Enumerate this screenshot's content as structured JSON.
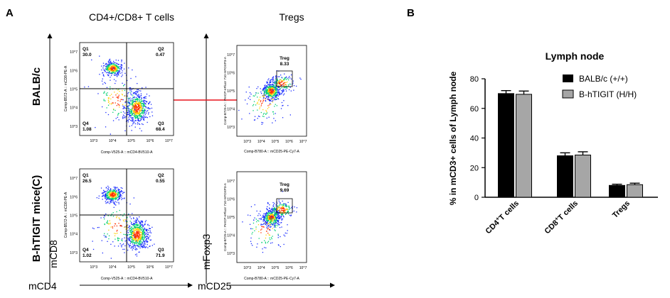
{
  "panel_a": {
    "label": "A",
    "col_titles": [
      "CD4+/CD8+ T cells",
      "Tregs"
    ],
    "row_labels": [
      "BALB/c",
      "B-hTIGIT mice(C)"
    ],
    "axis_mcd8": "mCD8",
    "axis_mcd4": "mCD4",
    "axis_mfoxp3": "mFoxp3",
    "axis_mcd25": "mCD25",
    "plot_xlabel_cd4": "Comp-V525-A :: mCD4-BV510-A",
    "plot_ylabel_cd8": "Comp-B572-A :: mCD8-PE-A",
    "plot_xlabel_cd25": "Comp-B780-A :: mCD25-PE-Cy7-A",
    "plot_ylabel_foxp3": "Comp-B725-A :: PerCP-eFluor 710-mFOXP3-A",
    "tick_labels": [
      "10^3",
      "10^4",
      "10^5",
      "10^6",
      "10^7"
    ],
    "gate_label": "Treg",
    "rows": [
      {
        "q1_label": "Q1",
        "q1": "30.0",
        "q2_label": "Q2",
        "q2": "0.47",
        "q3_label": "Q3",
        "q3": "68.4",
        "q4_label": "Q4",
        "q4": "1.08",
        "treg": "8.33"
      },
      {
        "q1_label": "Q1",
        "q1": "26.5",
        "q2_label": "Q2",
        "q2": "0.55",
        "q3_label": "Q3",
        "q3": "71.9",
        "q4_label": "Q4",
        "q4": "1.02",
        "treg": "9.69"
      }
    ],
    "colors": {
      "arrow": "#e8141c",
      "dense": "#ff3000",
      "mid": "#00d070",
      "sparse": "#1a2cff"
    }
  },
  "panel_b": {
    "label": "B",
    "colors": [
      "#000000",
      "#a6a6a6"
    ]
  },
  "chart_data": {
    "type": "bar",
    "title": "Lymph node",
    "ylabel": "% in mCD3+ cells of Lymph node",
    "xlabel": "",
    "categories": [
      "CD4+T cells",
      "CD8+T cells",
      "Tregs"
    ],
    "category_labels": [
      {
        "pre": "CD4",
        "sup": "+",
        "post": "T cells"
      },
      {
        "pre": "CD8",
        "sup": "+",
        "post": "T cells"
      },
      {
        "pre": "Tregs",
        "sup": "",
        "post": ""
      }
    ],
    "ylim": [
      0,
      80
    ],
    "yticks": [
      0,
      20,
      40,
      60,
      80
    ],
    "legend_position": "top-right",
    "series": [
      {
        "name": "BALB/c (+/+)",
        "values": [
          70,
          28,
          8
        ],
        "errors": [
          2,
          2,
          0.8
        ]
      },
      {
        "name": "B-hTIGIT (H/H)",
        "values": [
          69.5,
          28.5,
          8.5
        ],
        "errors": [
          2.2,
          2.2,
          1
        ]
      }
    ]
  }
}
